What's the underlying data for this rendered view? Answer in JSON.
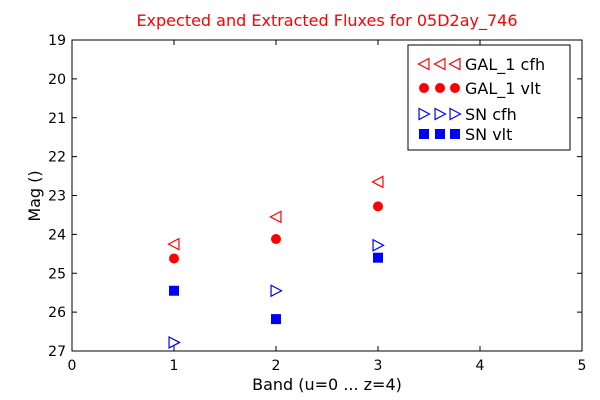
{
  "chart_data": {
    "type": "scatter",
    "title": "Expected and Extracted Fluxes for 05D2ay_746",
    "xlabel": "Band (u=0 ... z=4)",
    "ylabel": "Mag ()",
    "xlim": [
      0,
      5
    ],
    "ylim": [
      27,
      19
    ],
    "y_inverted": true,
    "x_ticks": [
      "0",
      "1",
      "2",
      "3",
      "4",
      "5"
    ],
    "y_ticks": [
      "19",
      "20",
      "21",
      "22",
      "23",
      "24",
      "25",
      "26",
      "27"
    ],
    "grid": false,
    "legend_position": "top-right",
    "series": [
      {
        "name": "GAL_1 cfh",
        "marker": "triangle-left-open",
        "color": "#ff0000",
        "x": [
          1,
          2,
          3
        ],
        "y": [
          24.25,
          23.55,
          22.65
        ]
      },
      {
        "name": "GAL_1 vlt",
        "marker": "circle-filled",
        "color": "#ff0000",
        "x": [
          1,
          2,
          3
        ],
        "y": [
          24.62,
          24.12,
          23.28
        ]
      },
      {
        "name": "SN cfh",
        "marker": "triangle-right-open",
        "color": "#0000ff",
        "x": [
          1,
          2,
          3
        ],
        "y": [
          26.78,
          25.45,
          24.28
        ]
      },
      {
        "name": "SN vlt",
        "marker": "square-filled",
        "color": "#0000ff",
        "x": [
          1,
          2,
          3
        ],
        "y": [
          25.45,
          26.18,
          24.6
        ]
      }
    ]
  }
}
